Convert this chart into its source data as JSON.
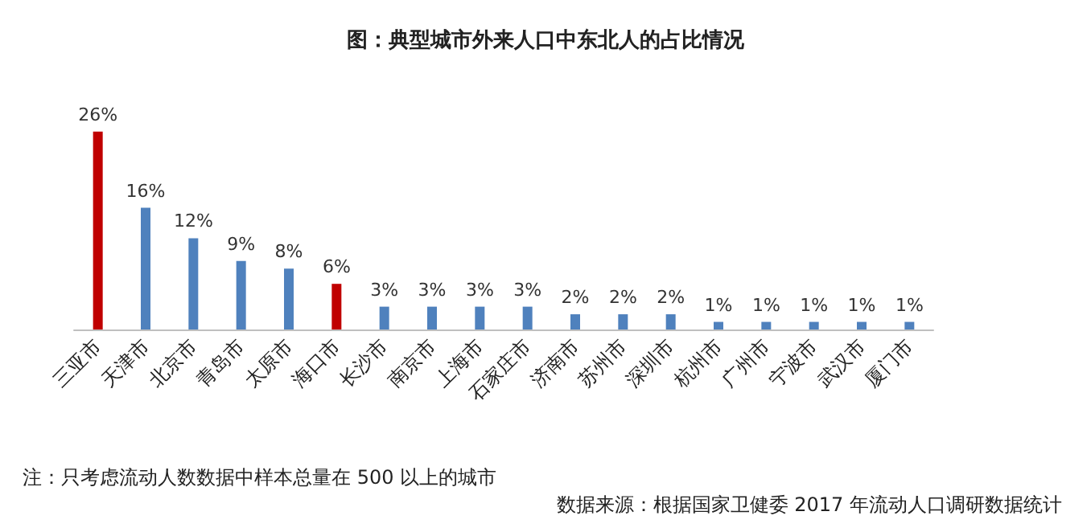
{
  "chart_data": {
    "type": "bar",
    "title": "图：典型城市外来人口中东北人的占比情况",
    "categories": [
      "三亚市",
      "天津市",
      "北京市",
      "青岛市",
      "太原市",
      "海口市",
      "长沙市",
      "南京市",
      "上海市",
      "石家庄市",
      "济南市",
      "苏州市",
      "深圳市",
      "杭州市",
      "广州市",
      "宁波市",
      "武汉市",
      "厦门市"
    ],
    "values": [
      26,
      16,
      12,
      9,
      8,
      6,
      3,
      3,
      3,
      3,
      2,
      2,
      2,
      1,
      1,
      1,
      1,
      1
    ],
    "colors": [
      "#c00000",
      "#4f81bd",
      "#4f81bd",
      "#4f81bd",
      "#4f81bd",
      "#c00000",
      "#4f81bd",
      "#4f81bd",
      "#4f81bd",
      "#4f81bd",
      "#4f81bd",
      "#4f81bd",
      "#4f81bd",
      "#4f81bd",
      "#4f81bd",
      "#4f81bd",
      "#4f81bd",
      "#4f81bd"
    ],
    "value_labels": [
      "26%",
      "16%",
      "12%",
      "9%",
      "8%",
      "6%",
      "3%",
      "3%",
      "3%",
      "3%",
      "2%",
      "2%",
      "2%",
      "1%",
      "1%",
      "1%",
      "1%",
      "1%"
    ],
    "tick_labels": "x",
    "grid": false,
    "annotations": [
      "注：只考虑流动人数数据中样本总量在 500 以上的城市",
      "数据来源：根据国家卫健委 2017 年流动人口调研数据统计"
    ]
  }
}
